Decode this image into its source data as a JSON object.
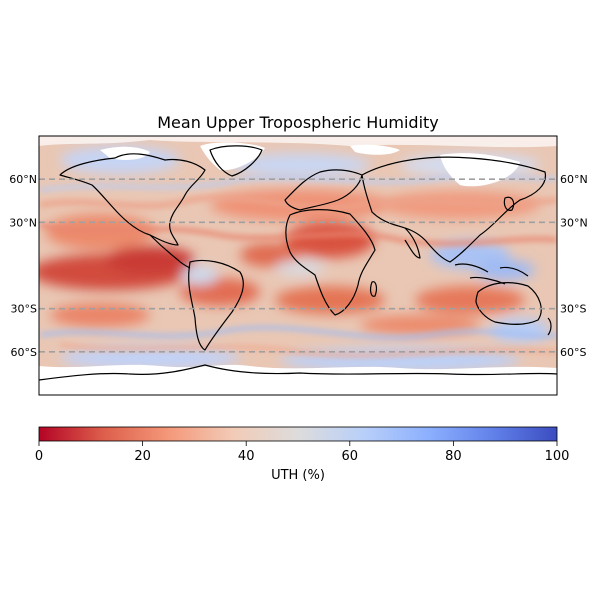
{
  "title": "Mean Upper Tropospheric Humidity",
  "colormap": {
    "name": "coolwarm_r",
    "stops": [
      "#b40426",
      "#dd5f4b",
      "#f4987a",
      "#f2cbb7",
      "#dddcdc",
      "#b9d0f9",
      "#8db0fe",
      "#6282ea",
      "#3b4cc0"
    ]
  },
  "colorbar": {
    "label": "UTH (%)",
    "range": [
      0,
      100
    ],
    "ticks": [
      "0",
      "20",
      "40",
      "60",
      "80",
      "100"
    ]
  },
  "gridlines": {
    "style": "dashed",
    "color": "#a0a0a0",
    "latitudes": [
      60,
      30,
      -30,
      -60
    ],
    "left_labels": [
      "60°N",
      "30°N",
      "30°S",
      "60°S"
    ],
    "right_labels": [
      "60°N",
      "30°N",
      "30°S",
      "60°S"
    ]
  },
  "map": {
    "projection": "plate-carree",
    "lon_range": [
      -180,
      180
    ],
    "lat_range": [
      -90,
      90
    ],
    "missing_color": "#ffffff",
    "coastline_color": "#000000"
  }
}
